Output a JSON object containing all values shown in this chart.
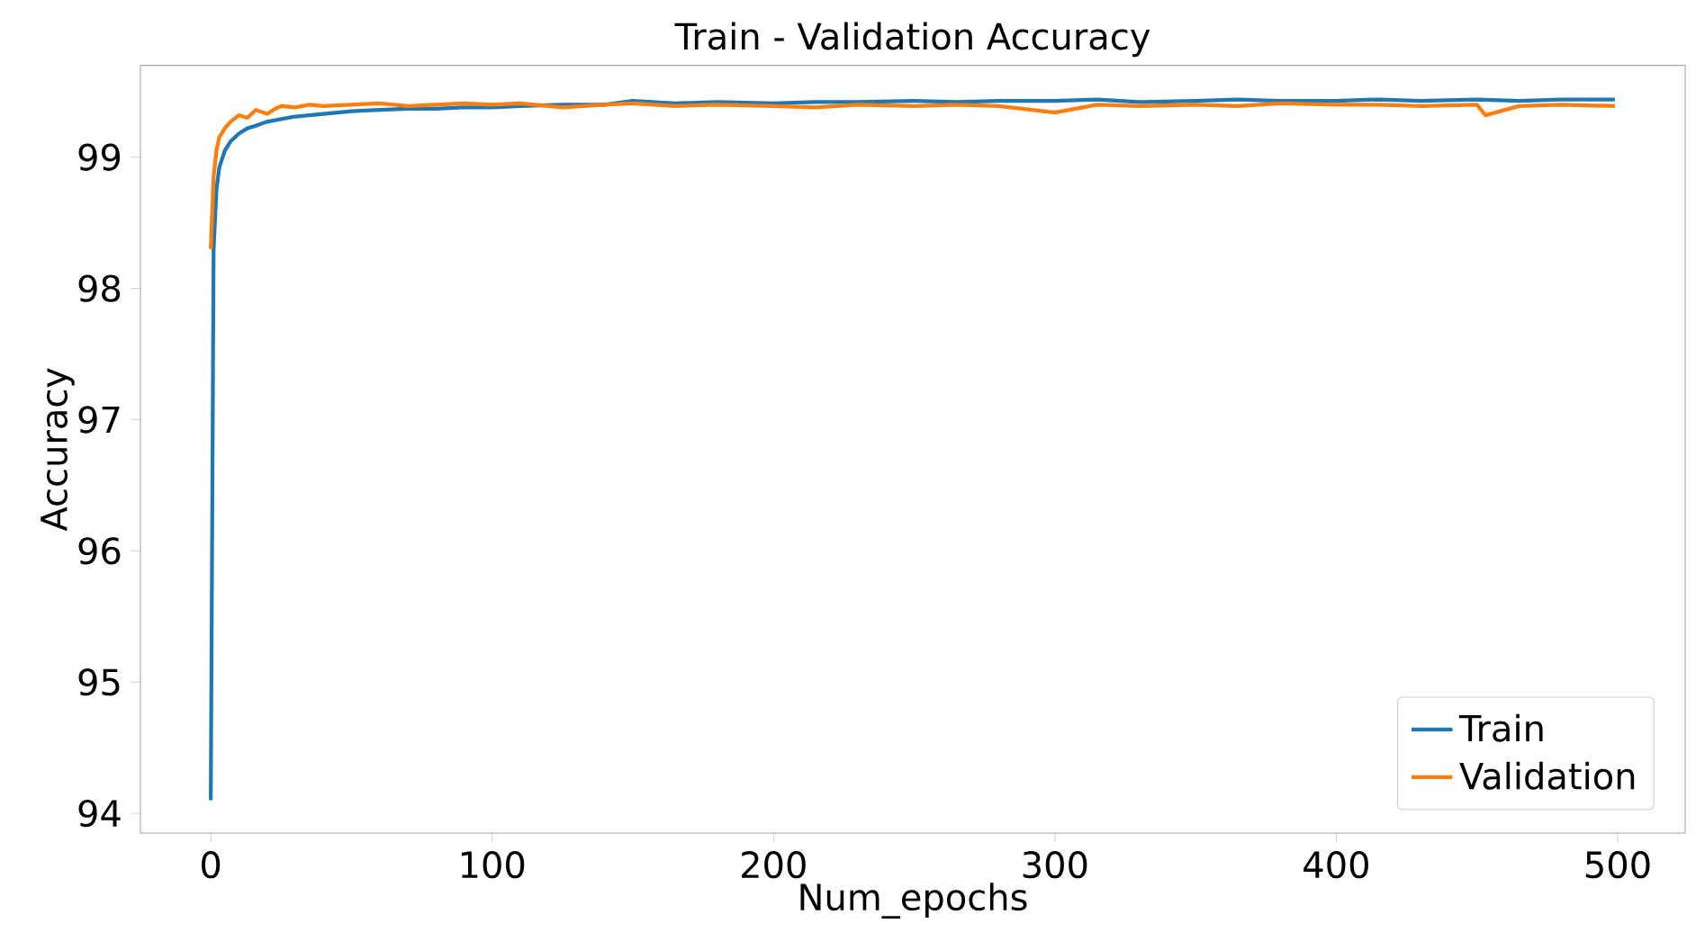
{
  "chart_data": {
    "type": "line",
    "title": "Train - Validation Accuracy",
    "xlabel": "Num_epochs",
    "ylabel": "Accuracy",
    "xlim": [
      -25,
      524
    ],
    "ylim": [
      93.85,
      99.7
    ],
    "xticks": [
      0,
      100,
      200,
      300,
      400,
      500
    ],
    "yticks": [
      94,
      95,
      96,
      97,
      98,
      99
    ],
    "legend": "bottom right",
    "grid": false,
    "line_style": "solid",
    "series": [
      {
        "name": "Train",
        "color": "#1f77b4",
        "x": [
          0,
          1,
          2,
          3,
          5,
          7,
          10,
          13,
          16,
          20,
          25,
          30,
          35,
          40,
          50,
          60,
          70,
          80,
          90,
          100,
          110,
          125,
          140,
          150,
          165,
          180,
          200,
          215,
          230,
          250,
          265,
          280,
          300,
          315,
          330,
          350,
          365,
          380,
          400,
          415,
          430,
          450,
          465,
          480,
          499
        ],
        "values": [
          94.1,
          98.3,
          98.75,
          98.92,
          99.05,
          99.12,
          99.18,
          99.22,
          99.24,
          99.27,
          99.29,
          99.31,
          99.32,
          99.33,
          99.35,
          99.36,
          99.37,
          99.37,
          99.38,
          99.38,
          99.39,
          99.4,
          99.4,
          99.43,
          99.41,
          99.42,
          99.41,
          99.42,
          99.42,
          99.43,
          99.42,
          99.43,
          99.43,
          99.44,
          99.42,
          99.43,
          99.44,
          99.43,
          99.43,
          99.44,
          99.43,
          99.44,
          99.43,
          99.44,
          99.44
        ]
      },
      {
        "name": "Validation",
        "color": "#ff7f0e",
        "x": [
          0,
          1,
          2,
          3,
          5,
          7,
          10,
          13,
          16,
          20,
          23,
          25,
          30,
          35,
          40,
          50,
          60,
          70,
          80,
          90,
          100,
          110,
          125,
          140,
          150,
          165,
          180,
          200,
          215,
          230,
          250,
          265,
          280,
          300,
          315,
          330,
          350,
          365,
          380,
          400,
          415,
          430,
          450,
          453,
          465,
          480,
          499
        ],
        "values": [
          98.3,
          98.85,
          99.05,
          99.15,
          99.22,
          99.27,
          99.32,
          99.3,
          99.36,
          99.33,
          99.37,
          99.39,
          99.38,
          99.4,
          99.39,
          99.4,
          99.41,
          99.39,
          99.4,
          99.41,
          99.4,
          99.41,
          99.38,
          99.4,
          99.41,
          99.39,
          99.4,
          99.39,
          99.38,
          99.4,
          99.39,
          99.4,
          99.39,
          99.34,
          99.4,
          99.39,
          99.4,
          99.39,
          99.41,
          99.4,
          99.4,
          99.39,
          99.4,
          99.32,
          99.39,
          99.4,
          99.39
        ]
      }
    ]
  }
}
